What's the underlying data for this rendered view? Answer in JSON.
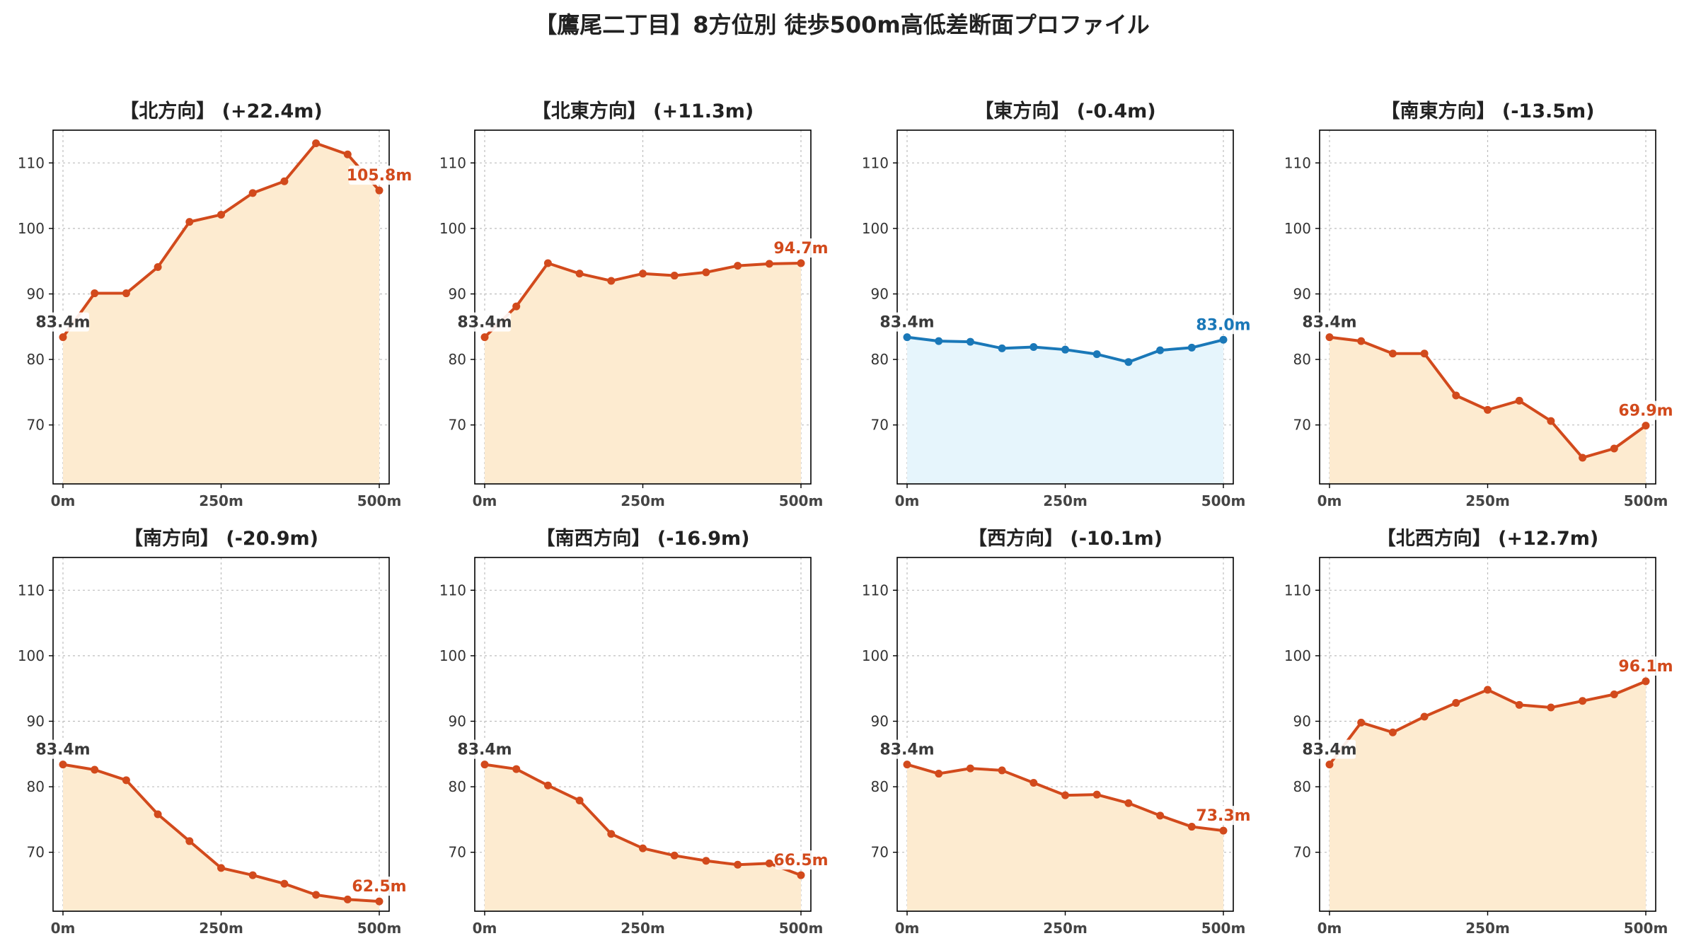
{
  "title": "【鷹尾二丁目】8方位別 徒歩500m高低差断面プロファイル",
  "colors": {
    "up": "#d24a1c",
    "flat": "#1a78b8",
    "up_fill": "#fdebd0",
    "flat_fill": "#e6f5fc",
    "start_label": "#3a3a3a",
    "grid": "#bdbdbd"
  },
  "chart_data": [
    {
      "type": "area",
      "title": "【北方向】 (+22.4m)",
      "x": [
        0,
        50,
        100,
        150,
        200,
        250,
        300,
        350,
        400,
        450,
        500
      ],
      "xticks": [
        "0m",
        "250m",
        "500m"
      ],
      "values": [
        83.4,
        90.1,
        90.1,
        94.1,
        101.0,
        102.1,
        105.4,
        107.2,
        113.0,
        111.3,
        105.8
      ],
      "start_label": "83.4m",
      "end_label": "105.8m",
      "tone": "up",
      "ylim": [
        61,
        115
      ],
      "yticks": [
        70,
        80,
        90,
        100,
        110
      ],
      "grid": true
    },
    {
      "type": "area",
      "title": "【北東方向】 (+11.3m)",
      "x": [
        0,
        50,
        100,
        150,
        200,
        250,
        300,
        350,
        400,
        450,
        500
      ],
      "xticks": [
        "0m",
        "250m",
        "500m"
      ],
      "values": [
        83.4,
        88.1,
        94.7,
        93.1,
        92.0,
        93.1,
        92.8,
        93.3,
        94.3,
        94.6,
        94.7
      ],
      "start_label": "83.4m",
      "end_label": "94.7m",
      "tone": "up",
      "ylim": [
        61,
        115
      ],
      "yticks": [
        70,
        80,
        90,
        100,
        110
      ],
      "grid": true
    },
    {
      "type": "area",
      "title": "【東方向】 (-0.4m)",
      "x": [
        0,
        50,
        100,
        150,
        200,
        250,
        300,
        350,
        400,
        450,
        500
      ],
      "xticks": [
        "0m",
        "250m",
        "500m"
      ],
      "values": [
        83.4,
        82.8,
        82.7,
        81.7,
        81.9,
        81.5,
        80.8,
        79.6,
        81.4,
        81.8,
        83.0
      ],
      "start_label": "83.4m",
      "end_label": "83.0m",
      "tone": "flat",
      "ylim": [
        61,
        115
      ],
      "yticks": [
        70,
        80,
        90,
        100,
        110
      ],
      "grid": true
    },
    {
      "type": "area",
      "title": "【南東方向】 (-13.5m)",
      "x": [
        0,
        50,
        100,
        150,
        200,
        250,
        300,
        350,
        400,
        450,
        500
      ],
      "xticks": [
        "0m",
        "250m",
        "500m"
      ],
      "values": [
        83.4,
        82.8,
        80.9,
        80.9,
        74.5,
        72.3,
        73.7,
        70.6,
        65.0,
        66.4,
        69.9
      ],
      "start_label": "83.4m",
      "end_label": "69.9m",
      "tone": "up",
      "ylim": [
        61,
        115
      ],
      "yticks": [
        70,
        80,
        90,
        100,
        110
      ],
      "grid": true
    },
    {
      "type": "area",
      "title": "【南方向】 (-20.9m)",
      "x": [
        0,
        50,
        100,
        150,
        200,
        250,
        300,
        350,
        400,
        450,
        500
      ],
      "xticks": [
        "0m",
        "250m",
        "500m"
      ],
      "values": [
        83.4,
        82.6,
        81.0,
        75.8,
        71.7,
        67.6,
        66.5,
        65.2,
        63.5,
        62.8,
        62.5
      ],
      "start_label": "83.4m",
      "end_label": "62.5m",
      "tone": "up",
      "ylim": [
        61,
        115
      ],
      "yticks": [
        70,
        80,
        90,
        100,
        110
      ],
      "grid": true
    },
    {
      "type": "area",
      "title": "【南西方向】 (-16.9m)",
      "x": [
        0,
        50,
        100,
        150,
        200,
        250,
        300,
        350,
        400,
        450,
        500
      ],
      "xticks": [
        "0m",
        "250m",
        "500m"
      ],
      "values": [
        83.4,
        82.7,
        80.2,
        77.9,
        72.8,
        70.6,
        69.5,
        68.7,
        68.1,
        68.3,
        66.5
      ],
      "start_label": "83.4m",
      "end_label": "66.5m",
      "tone": "up",
      "ylim": [
        61,
        115
      ],
      "yticks": [
        70,
        80,
        90,
        100,
        110
      ],
      "grid": true
    },
    {
      "type": "area",
      "title": "【西方向】 (-10.1m)",
      "x": [
        0,
        50,
        100,
        150,
        200,
        250,
        300,
        350,
        400,
        450,
        500
      ],
      "xticks": [
        "0m",
        "250m",
        "500m"
      ],
      "values": [
        83.4,
        82.0,
        82.8,
        82.5,
        80.6,
        78.7,
        78.8,
        77.5,
        75.6,
        73.9,
        73.3
      ],
      "start_label": "83.4m",
      "end_label": "73.3m",
      "tone": "up",
      "ylim": [
        61,
        115
      ],
      "yticks": [
        70,
        80,
        90,
        100,
        110
      ],
      "grid": true
    },
    {
      "type": "area",
      "title": "【北西方向】 (+12.7m)",
      "x": [
        0,
        50,
        100,
        150,
        200,
        250,
        300,
        350,
        400,
        450,
        500
      ],
      "xticks": [
        "0m",
        "250m",
        "500m"
      ],
      "values": [
        83.4,
        89.8,
        88.3,
        90.7,
        92.8,
        94.8,
        92.5,
        92.1,
        93.1,
        94.1,
        96.1
      ],
      "start_label": "83.4m",
      "end_label": "96.1m",
      "tone": "up",
      "ylim": [
        61,
        115
      ],
      "yticks": [
        70,
        80,
        90,
        100,
        110
      ],
      "grid": true
    }
  ]
}
